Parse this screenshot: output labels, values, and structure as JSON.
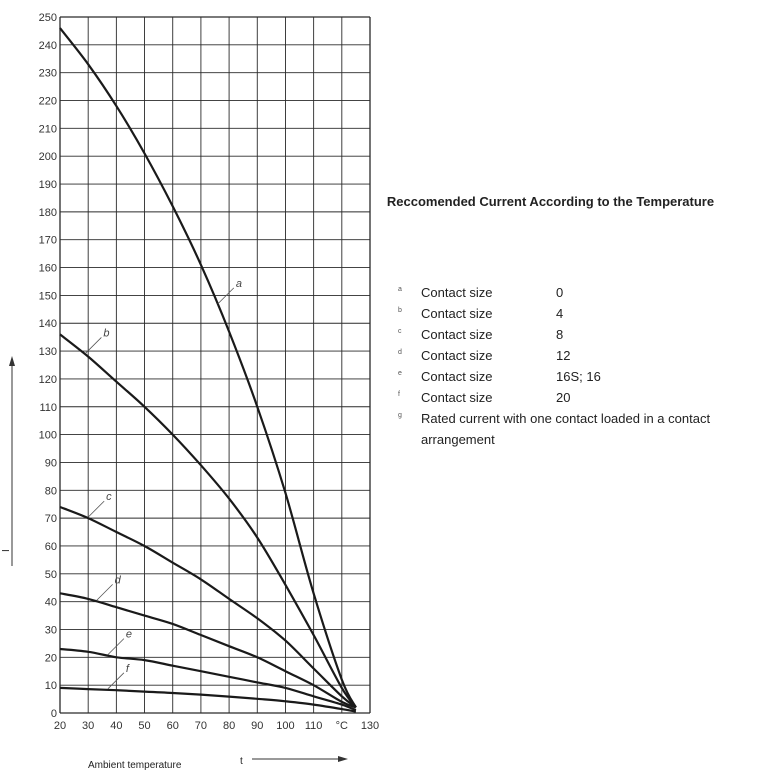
{
  "chart_data": {
    "type": "line",
    "x_tick_labels": [
      "20",
      "30",
      "40",
      "50",
      "60",
      "70",
      "80",
      "90",
      "100",
      "110",
      "°C",
      "130"
    ],
    "y_tick_labels": [
      "0",
      "10",
      "20",
      "30",
      "40",
      "50",
      "60",
      "70",
      "80",
      "90",
      "100",
      "110",
      "120",
      "130",
      "140",
      "150",
      "160",
      "170",
      "180",
      "190",
      "200",
      "210",
      "220",
      "230",
      "240",
      "250"
    ],
    "xlim": [
      20,
      130
    ],
    "ylim": [
      0,
      250
    ],
    "grid": true,
    "xlabel": "Ambient temperature",
    "xsymbol": "t",
    "ysymbol": "I",
    "series": [
      {
        "name": "a",
        "x": [
          20,
          30,
          40,
          50,
          60,
          70,
          80,
          90,
          100,
          110,
          120,
          125
        ],
        "y": [
          246,
          233,
          218,
          201,
          182,
          161,
          137,
          110,
          79,
          43,
          12,
          2
        ]
      },
      {
        "name": "b",
        "x": [
          20,
          30,
          40,
          50,
          60,
          70,
          80,
          90,
          100,
          110,
          120,
          125
        ],
        "y": [
          136,
          128,
          119,
          110,
          100,
          89,
          77,
          63,
          46,
          28,
          9,
          2
        ]
      },
      {
        "name": "c",
        "x": [
          20,
          30,
          40,
          50,
          60,
          70,
          80,
          90,
          100,
          110,
          120,
          125
        ],
        "y": [
          74,
          70,
          65,
          60,
          54,
          48,
          41,
          34,
          26,
          16,
          6,
          2
        ]
      },
      {
        "name": "d",
        "x": [
          20,
          30,
          40,
          50,
          60,
          70,
          80,
          90,
          100,
          110,
          120,
          125
        ],
        "y": [
          43,
          41,
          38,
          35,
          32,
          28,
          24,
          20,
          15,
          10,
          4,
          2
        ]
      },
      {
        "name": "e",
        "x": [
          20,
          30,
          40,
          50,
          60,
          70,
          80,
          90,
          100,
          110,
          120,
          125
        ],
        "y": [
          23,
          22,
          20,
          19,
          17,
          15,
          13,
          11,
          9,
          6,
          3,
          1
        ]
      },
      {
        "name": "f",
        "x": [
          20,
          30,
          40,
          50,
          60,
          70,
          80,
          90,
          100,
          110,
          120,
          125
        ],
        "y": [
          9,
          8.6,
          8.2,
          7.7,
          7.2,
          6.6,
          5.9,
          5.1,
          4.2,
          3.0,
          1.4,
          0.5
        ]
      }
    ],
    "curve_labels": [
      {
        "text": "a",
        "series": "a",
        "at_x": 76
      },
      {
        "text": "b",
        "series": "b",
        "at_x": 29
      },
      {
        "text": "c",
        "series": "c",
        "at_x": 30
      },
      {
        "text": "d",
        "series": "d",
        "at_x": 33
      },
      {
        "text": "e",
        "series": "e",
        "at_x": 37
      },
      {
        "text": "f",
        "series": "f",
        "at_x": 37
      }
    ]
  },
  "legend": {
    "title": "Reccomended Current According to the Temperature",
    "items": [
      {
        "letter": "a",
        "text": "Contact size",
        "size": "0"
      },
      {
        "letter": "b",
        "text": "Contact size",
        "size": "4"
      },
      {
        "letter": "c",
        "text": "Contact size",
        "size": "8"
      },
      {
        "letter": "d",
        "text": "Contact size",
        "size": "12"
      },
      {
        "letter": "e",
        "text": "Contact size",
        "size": "16S; 16"
      },
      {
        "letter": "f",
        "text": "Contact size",
        "size": "20"
      }
    ],
    "note_letter": "g",
    "note": "Rated current with one contact loaded in a contact arrangement"
  },
  "colors": {
    "curve": "#1a1a1a",
    "grid": "#2a2a2a",
    "text": "#222222"
  }
}
